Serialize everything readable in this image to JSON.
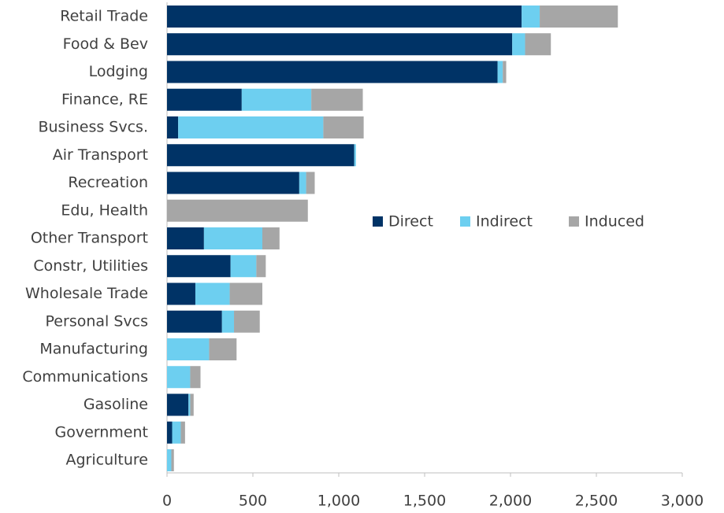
{
  "chart_data": {
    "type": "stacked-hbar",
    "categories": [
      "Retail Trade",
      "Food & Bev",
      "Lodging",
      "Finance, RE",
      "Business Svcs.",
      "Air Transport",
      "Recreation",
      "Edu, Health",
      "Other Transport",
      "Constr, Utilities",
      "Wholesale Trade",
      "Personal Svcs",
      "Manufacturing",
      "Communications",
      "Gasoline",
      "Government",
      "Agriculture"
    ],
    "series": [
      {
        "name": "Direct",
        "color": "#003366",
        "values": [
          2065,
          2010,
          1925,
          435,
          65,
          1090,
          770,
          0,
          215,
          370,
          165,
          320,
          0,
          0,
          125,
          30,
          0
        ]
      },
      {
        "name": "Indirect",
        "color": "#6dcff0",
        "values": [
          105,
          75,
          30,
          405,
          845,
          10,
          40,
          0,
          340,
          150,
          200,
          70,
          245,
          135,
          10,
          50,
          25
        ]
      },
      {
        "name": "Induced",
        "color": "#a6a6a6",
        "values": [
          455,
          150,
          20,
          300,
          235,
          0,
          50,
          820,
          100,
          55,
          190,
          150,
          160,
          60,
          20,
          25,
          15
        ]
      }
    ],
    "xlim": [
      0,
      3000
    ],
    "xticks": [
      0,
      500,
      {
        "value": 1000,
        "label": "1,000"
      },
      {
        "value": 1500,
        "label": "1,500"
      },
      {
        "value": 2000,
        "label": "2,000"
      },
      {
        "value": 2500,
        "label": "2,500"
      },
      {
        "value": 3000,
        "label": "3,000"
      }
    ]
  }
}
